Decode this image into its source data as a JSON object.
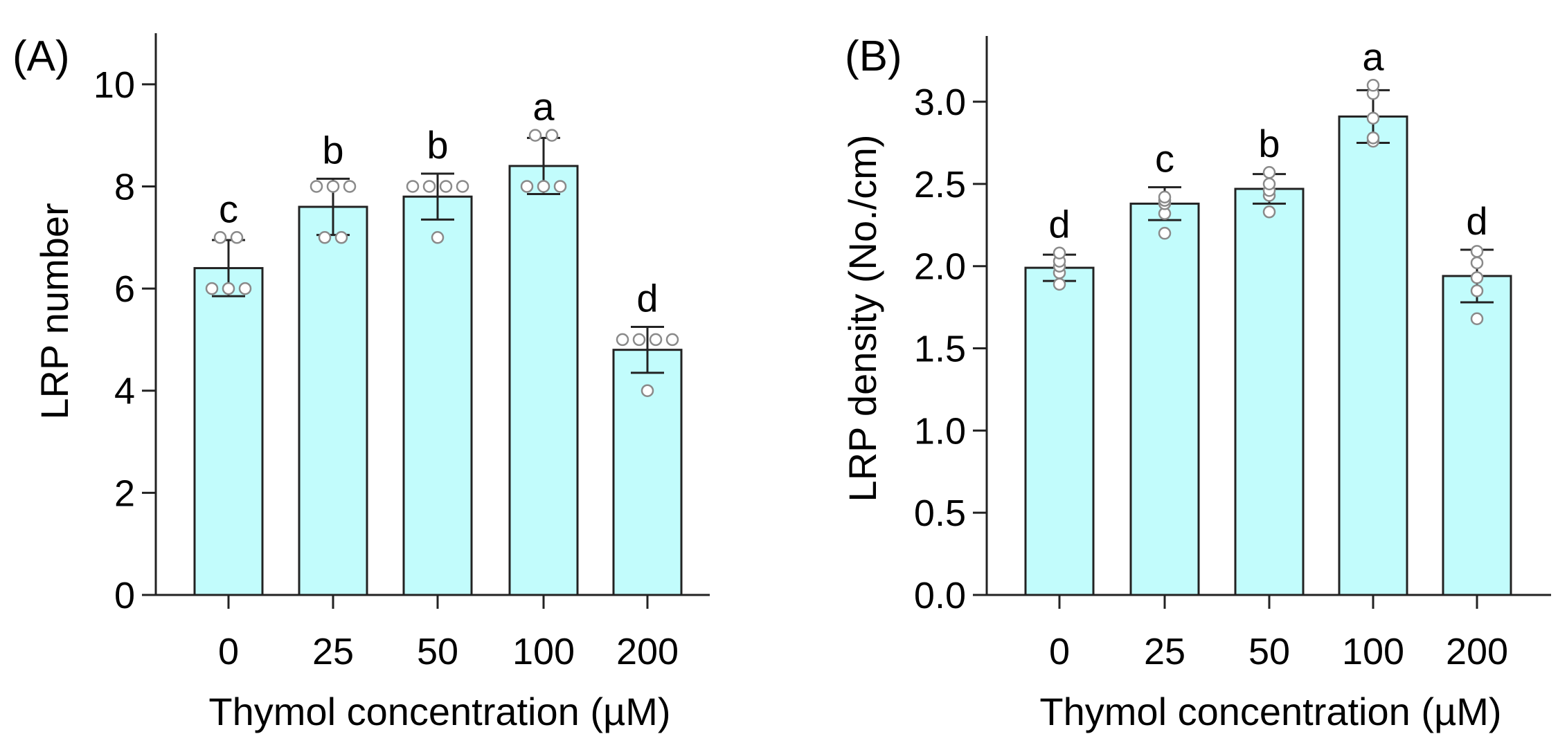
{
  "chart_data": [
    {
      "type": "bar",
      "panel_label": "(A)",
      "categories": [
        "0",
        "25",
        "50",
        "100",
        "200"
      ],
      "values": [
        6.4,
        7.6,
        7.8,
        8.4,
        4.8
      ],
      "error": [
        0.55,
        0.55,
        0.45,
        0.55,
        0.45
      ],
      "points": [
        [
          6.0,
          6.0,
          6.0,
          7.0,
          7.0
        ],
        [
          7.0,
          7.0,
          8.0,
          8.0,
          8.0
        ],
        [
          7.0,
          8.0,
          8.0,
          8.0,
          8.0
        ],
        [
          8.0,
          8.0,
          8.0,
          9.0,
          9.0
        ],
        [
          4.0,
          5.0,
          5.0,
          5.0,
          5.0
        ]
      ],
      "letters": [
        "c",
        "b",
        "b",
        "a",
        "d"
      ],
      "xlabel": "Thymol concentration (µM)",
      "ylabel": "LRP number",
      "ylim": [
        0,
        11
      ],
      "yticks": [
        "0",
        "2",
        "4",
        "6",
        "8",
        "10"
      ],
      "ytick_values": [
        0,
        2,
        4,
        6,
        8,
        10
      ],
      "bar_color": "#c2fcfc",
      "grid": false
    },
    {
      "type": "bar",
      "panel_label": "(B)",
      "categories": [
        "0",
        "25",
        "50",
        "100",
        "200"
      ],
      "values": [
        1.99,
        2.38,
        2.47,
        2.91,
        1.94
      ],
      "error": [
        0.08,
        0.1,
        0.09,
        0.16,
        0.16
      ],
      "points": [
        [
          1.89,
          1.96,
          2.0,
          2.03,
          2.08
        ],
        [
          2.2,
          2.32,
          2.38,
          2.4,
          2.42
        ],
        [
          2.33,
          2.43,
          2.46,
          2.5,
          2.57
        ],
        [
          2.76,
          2.78,
          2.9,
          3.05,
          3.1
        ],
        [
          1.68,
          1.85,
          1.93,
          2.02,
          2.09
        ]
      ],
      "letters": [
        "d",
        "c",
        "b",
        "a",
        "d"
      ],
      "xlabel": "Thymol concentration (µM)",
      "ylabel": "LRP density (No./cm)",
      "ylim": [
        0,
        3.4
      ],
      "yticks": [
        "0.0",
        "0.5",
        "1.0",
        "1.5",
        "2.0",
        "2.5",
        "3.0"
      ],
      "ytick_values": [
        0,
        0.5,
        1.0,
        1.5,
        2.0,
        2.5,
        3.0
      ],
      "bar_color": "#c2fcfc",
      "grid": false
    }
  ]
}
